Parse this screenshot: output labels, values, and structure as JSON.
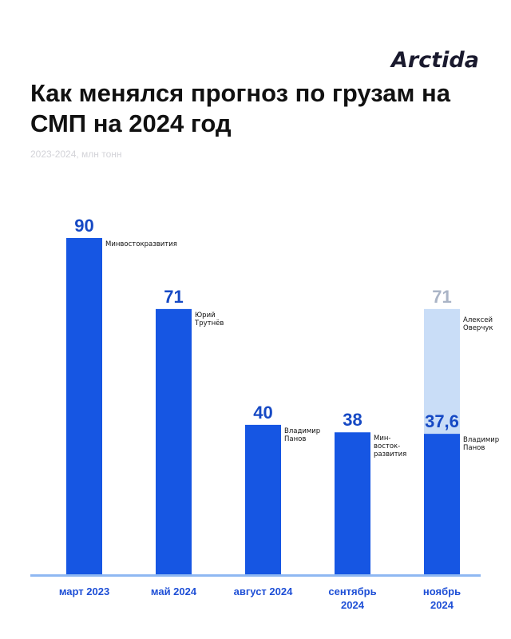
{
  "brand": {
    "logo_text": "Arctida"
  },
  "header": {
    "title": "Как менялся прогноз по грузам на СМП на 2024 год",
    "subtitle": "2023-2024, млн тонн"
  },
  "colors": {
    "bar": "#1656e3",
    "bar_upper": "#c9ddf7",
    "value_main": "#1649c4",
    "value_upper": "#aab4c6",
    "axis": "#8fb8f2",
    "label": "#1e4fd6"
  },
  "chart_data": {
    "type": "bar",
    "title": "Как менялся прогноз по грузам на СМП на 2024 год",
    "subtitle": "2023-2024, млн тонн",
    "ylim": [
      0,
      90
    ],
    "grid": false,
    "categories": [
      {
        "label": [
          "март 2023"
        ],
        "value": 90,
        "value_text": "90",
        "note": [
          "Минвостокразвития"
        ]
      },
      {
        "label": [
          "май 2024"
        ],
        "value": 71,
        "value_text": "71",
        "note": [
          "Юрий",
          "Трутнёв"
        ]
      },
      {
        "label": [
          "август 2024"
        ],
        "value": 40,
        "value_text": "40",
        "note": [
          "Владимир",
          "Панов"
        ]
      },
      {
        "label": [
          "сентябрь",
          "2024"
        ],
        "value": 38,
        "value_text": "38",
        "note": [
          "Мин-",
          "восток-",
          "развития"
        ]
      },
      {
        "label": [
          "ноябрь",
          "2024"
        ],
        "value": 37.6,
        "value_text": "37,6",
        "note": [
          "Владимир",
          "Панов"
        ],
        "upper": {
          "value": 71,
          "value_text": "71",
          "note": [
            "Алексей",
            "Оверчук"
          ]
        }
      }
    ]
  }
}
